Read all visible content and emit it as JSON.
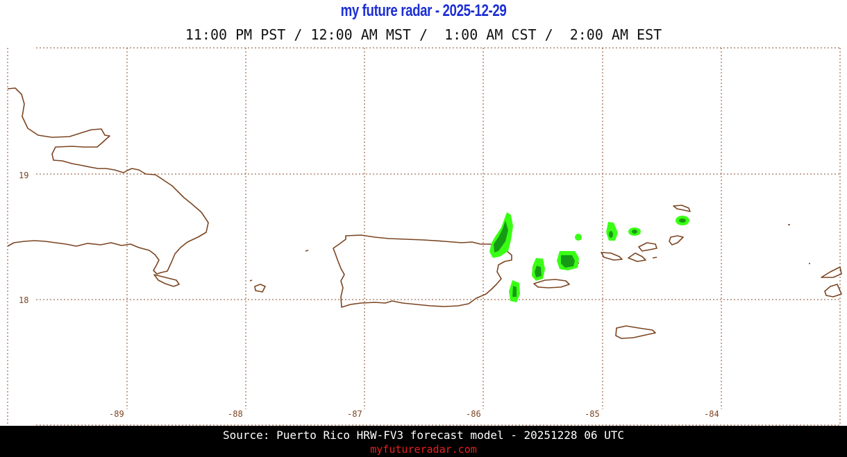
{
  "header": {
    "title": "my future radar - 2025-12-29",
    "times": "11:00 PM PST / 12:00 AM MST /  1:00 AM CST /  2:00 AM EST"
  },
  "map": {
    "lat_labels": [
      "19",
      "18"
    ],
    "lon_labels": [
      "-89",
      "-88",
      "-87",
      "-86",
      "-85",
      "-84"
    ],
    "grid_color": "#8a4b2a",
    "coast_color": "#7a4420",
    "radar_colors": {
      "light": "#39ff14",
      "dark": "#169a16"
    }
  },
  "footer": {
    "source": "Source: Puerto Rico HRW-FV3 forecast model - 20251228 06 UTC",
    "site": "myfutureradar.com"
  }
}
